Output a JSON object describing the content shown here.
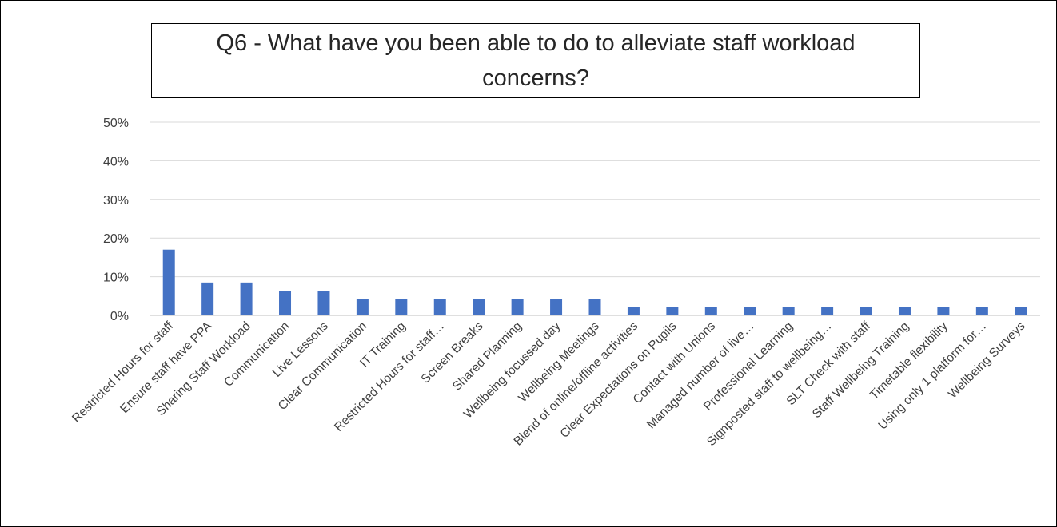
{
  "chart_data": {
    "type": "bar",
    "title": "Q6 - What have you been able to do to alleviate staff workload concerns?",
    "xlabel": "",
    "ylabel": "",
    "ylim": [
      0,
      0.5
    ],
    "yticks": [
      "0%",
      "10%",
      "20%",
      "30%",
      "40%",
      "50%"
    ],
    "yticks_values": [
      0,
      0.1,
      0.2,
      0.3,
      0.4,
      0.5
    ],
    "grid": true,
    "legend": "none",
    "bar_color": "#4472C4",
    "categories": [
      "Restricted Hours for staff",
      "Ensure staff have PPA",
      "Sharing Staff Workload",
      "Communication",
      "Live Lessons",
      "Clear Communication",
      "IT Training",
      "Restricted Hours for staff…",
      "Screen Breaks",
      "Shared Planning",
      "Wellbeing focussed day",
      "Wellbeing Meetings",
      "Blend of online/offline activities",
      "Clear Expectations on Pupils",
      "Contact with Unions",
      "Managed number of live…",
      "Professional Learning",
      "Signposted staff to wellbeing…",
      "SLT Check with staff",
      "Staff Wellbeing Training",
      "Timetable flexibility",
      "Using only 1 platform for…",
      "Wellbeing Surveys"
    ],
    "values": [
      0.17,
      0.085,
      0.085,
      0.064,
      0.064,
      0.043,
      0.043,
      0.043,
      0.043,
      0.043,
      0.043,
      0.043,
      0.021,
      0.021,
      0.021,
      0.021,
      0.021,
      0.021,
      0.021,
      0.021,
      0.021,
      0.021,
      0.021
    ]
  }
}
